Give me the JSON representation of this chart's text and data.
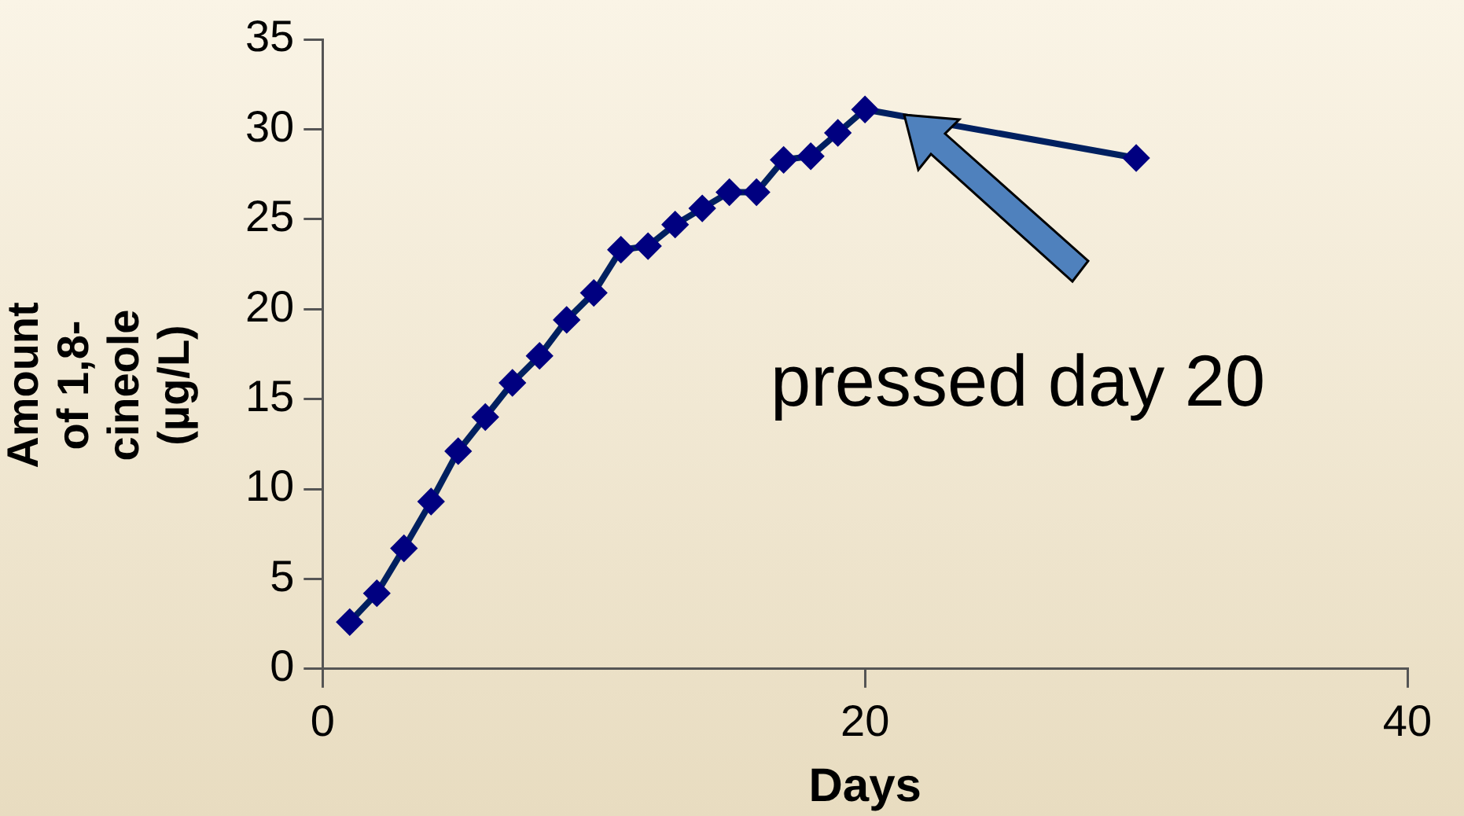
{
  "chart_data": {
    "type": "line",
    "xlabel": "Days",
    "ylabel": "Amount of 1,8-cineole (µg/L)",
    "x": [
      1,
      2,
      3,
      4,
      5,
      6,
      7,
      8,
      9,
      10,
      11,
      12,
      13,
      14,
      15,
      16,
      17,
      18,
      19,
      20,
      30
    ],
    "series": [
      {
        "color": "#000080",
        "values": [
          2.6,
          4.2,
          6.7,
          9.3,
          12.1,
          14.0,
          15.9,
          17.4,
          19.4,
          20.9,
          23.3,
          23.5,
          24.7,
          25.6,
          26.5,
          26.5,
          28.3,
          28.5,
          29.8,
          31.1,
          28.4
        ]
      }
    ],
    "xlim": [
      0,
      40
    ],
    "xticks": [
      0,
      20,
      40
    ],
    "ylim": [
      0,
      35
    ],
    "yticks": [
      0,
      5,
      10,
      15,
      20,
      25,
      30,
      35
    ],
    "grid": false,
    "legend": false,
    "marker": "diamond",
    "line_style": "solid",
    "annotations": [
      "pressed day 20"
    ]
  }
}
